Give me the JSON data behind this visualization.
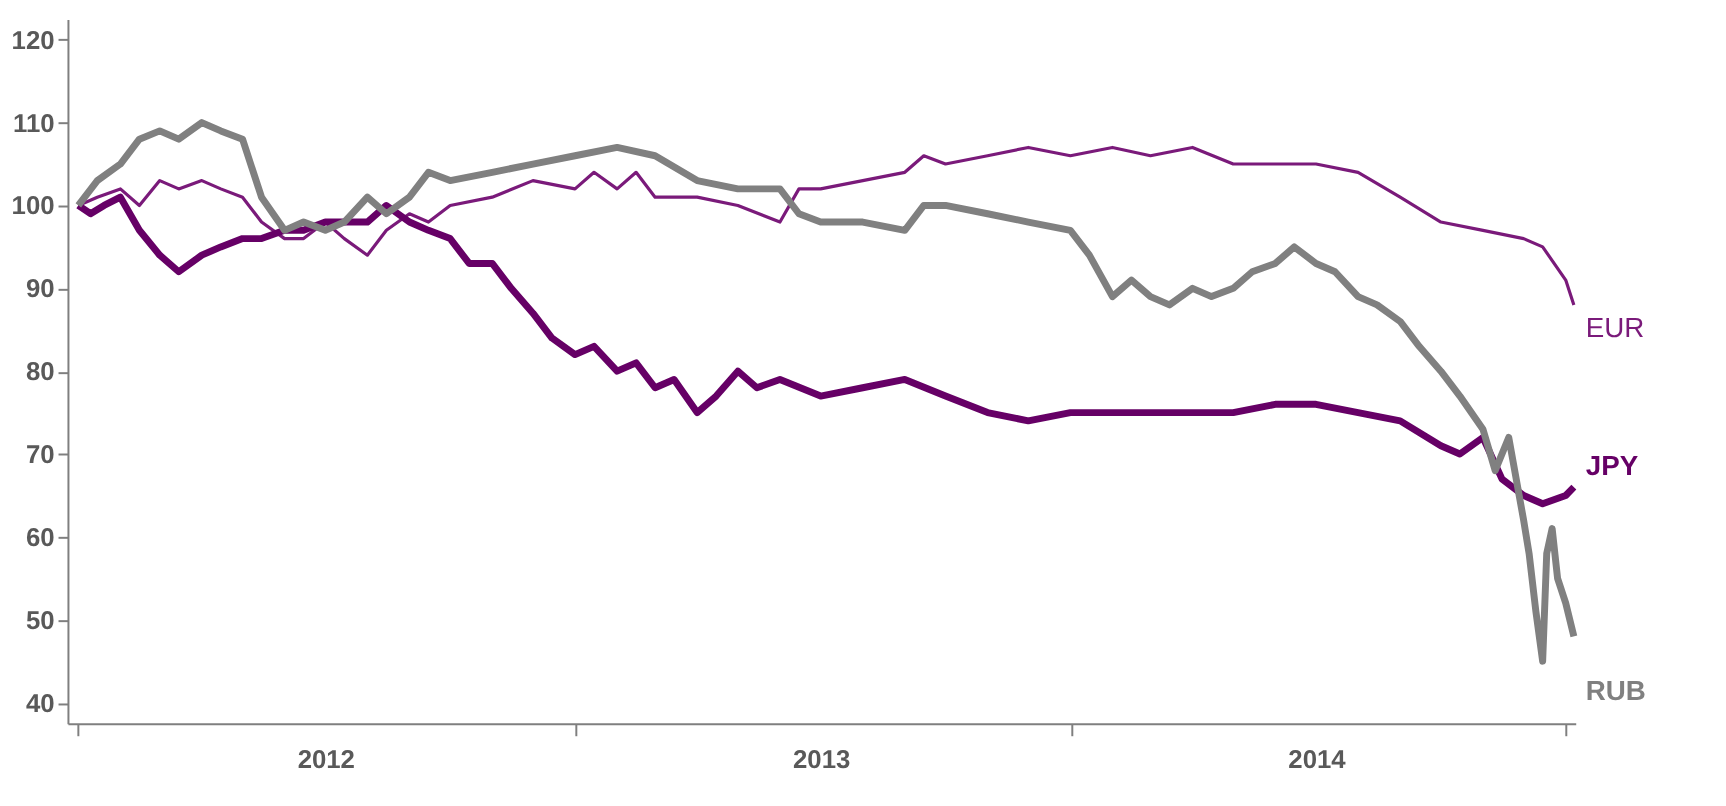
{
  "chart_data": {
    "type": "line",
    "xlim": [
      "2011-12-24",
      "2015-01-08"
    ],
    "ylim": [
      37.5,
      122.5
    ],
    "yticks": [
      40,
      50,
      60,
      70,
      80,
      90,
      100,
      110,
      120
    ],
    "xticks": [
      {
        "value": "2012-01-01",
        "label": null
      },
      {
        "value": "2012-07-01",
        "label": "2012"
      },
      {
        "value": "2013-01-01",
        "label": null
      },
      {
        "value": "2013-07-01",
        "label": "2013"
      },
      {
        "value": "2014-01-01",
        "label": null
      },
      {
        "value": "2014-07-01",
        "label": "2014"
      },
      {
        "value": "2015-01-01",
        "label": null
      }
    ],
    "series": [
      {
        "name": "EUR",
        "color": "#7a1a7a",
        "x": [
          "2012-01-01",
          "2012-01-15",
          "2012-02-01",
          "2012-02-15",
          "2012-03-01",
          "2012-03-15",
          "2012-04-01",
          "2012-04-15",
          "2012-05-01",
          "2012-05-15",
          "2012-06-01",
          "2012-06-15",
          "2012-07-01",
          "2012-07-15",
          "2012-08-01",
          "2012-08-15",
          "2012-09-01",
          "2012-09-15",
          "2012-10-01",
          "2012-11-01",
          "2012-12-01",
          "2013-01-01",
          "2013-01-15",
          "2013-02-01",
          "2013-02-15",
          "2013-03-01",
          "2013-04-01",
          "2013-05-01",
          "2013-06-01",
          "2013-06-15",
          "2013-07-01",
          "2013-08-01",
          "2013-09-01",
          "2013-09-15",
          "2013-10-01",
          "2013-11-01",
          "2013-12-01",
          "2014-01-01",
          "2014-02-01",
          "2014-03-01",
          "2014-04-01",
          "2014-05-01",
          "2014-06-01",
          "2014-07-01",
          "2014-08-01",
          "2014-09-01",
          "2014-10-01",
          "2014-11-01",
          "2014-12-01",
          "2014-12-15",
          "2015-01-01",
          "2015-01-07"
        ],
        "values": [
          100,
          101,
          102,
          100,
          103,
          102,
          103,
          102,
          101,
          98,
          96,
          96,
          98,
          96,
          94,
          97,
          99,
          98,
          100,
          101,
          103,
          102,
          104,
          102,
          104,
          101,
          101,
          100,
          98,
          102,
          102,
          103,
          104,
          106,
          105,
          106,
          107,
          106,
          107,
          106,
          107,
          105,
          105,
          105,
          104,
          101,
          98,
          97,
          96,
          95,
          91,
          88
        ]
      },
      {
        "name": "JPY",
        "color": "#660066",
        "x": [
          "2012-01-01",
          "2012-01-10",
          "2012-01-20",
          "2012-02-01",
          "2012-02-15",
          "2012-03-01",
          "2012-03-15",
          "2012-04-01",
          "2012-04-15",
          "2012-05-01",
          "2012-05-15",
          "2012-06-01",
          "2012-06-15",
          "2012-07-01",
          "2012-07-15",
          "2012-08-01",
          "2012-08-15",
          "2012-09-01",
          "2012-09-15",
          "2012-10-01",
          "2012-10-15",
          "2012-11-01",
          "2012-11-15",
          "2012-12-01",
          "2012-12-15",
          "2013-01-01",
          "2013-01-15",
          "2013-02-01",
          "2013-02-15",
          "2013-03-01",
          "2013-03-15",
          "2013-04-01",
          "2013-04-15",
          "2013-05-01",
          "2013-05-15",
          "2013-06-01",
          "2013-07-01",
          "2013-08-01",
          "2013-09-01",
          "2013-10-01",
          "2013-11-01",
          "2013-12-01",
          "2014-01-01",
          "2014-02-01",
          "2014-03-01",
          "2014-04-01",
          "2014-05-01",
          "2014-06-01",
          "2014-07-01",
          "2014-08-01",
          "2014-09-01",
          "2014-10-01",
          "2014-10-15",
          "2014-11-01",
          "2014-11-15",
          "2014-12-01",
          "2014-12-15",
          "2015-01-01",
          "2015-01-07"
        ],
        "values": [
          100,
          99,
          100,
          101,
          97,
          94,
          92,
          94,
          95,
          96,
          96,
          97,
          97,
          98,
          98,
          98,
          100,
          98,
          97,
          96,
          93,
          93,
          90,
          87,
          84,
          82,
          83,
          80,
          81,
          78,
          79,
          75,
          77,
          80,
          78,
          79,
          77,
          78,
          79,
          77,
          75,
          74,
          75,
          75,
          75,
          75,
          75,
          76,
          76,
          75,
          74,
          71,
          70,
          72,
          67,
          65,
          64,
          65,
          66
        ]
      },
      {
        "name": "RUB",
        "color": "#808080",
        "x": [
          "2012-01-01",
          "2012-01-15",
          "2012-02-01",
          "2012-02-15",
          "2012-03-01",
          "2012-03-15",
          "2012-04-01",
          "2012-04-15",
          "2012-05-01",
          "2012-05-15",
          "2012-06-01",
          "2012-06-15",
          "2012-07-01",
          "2012-07-15",
          "2012-08-01",
          "2012-08-15",
          "2012-09-01",
          "2012-09-15",
          "2012-10-01",
          "2012-11-01",
          "2012-12-01",
          "2013-01-01",
          "2013-02-01",
          "2013-03-01",
          "2013-04-01",
          "2013-05-01",
          "2013-06-01",
          "2013-06-15",
          "2013-07-01",
          "2013-08-01",
          "2013-09-01",
          "2013-09-15",
          "2013-10-01",
          "2013-11-01",
          "2013-12-01",
          "2014-01-01",
          "2014-01-15",
          "2014-02-01",
          "2014-02-15",
          "2014-03-01",
          "2014-03-15",
          "2014-04-01",
          "2014-04-15",
          "2014-05-01",
          "2014-05-15",
          "2014-06-01",
          "2014-06-15",
          "2014-07-01",
          "2014-07-15",
          "2014-08-01",
          "2014-08-15",
          "2014-09-01",
          "2014-09-15",
          "2014-10-01",
          "2014-10-15",
          "2014-11-01",
          "2014-11-10",
          "2014-11-20",
          "2014-12-01",
          "2014-12-05",
          "2014-12-10",
          "2014-12-15",
          "2014-12-18",
          "2014-12-22",
          "2014-12-26",
          "2015-01-01",
          "2015-01-07"
        ],
        "values": [
          100,
          103,
          105,
          108,
          109,
          108,
          110,
          109,
          108,
          101,
          97,
          98,
          97,
          98,
          101,
          99,
          101,
          104,
          103,
          104,
          105,
          106,
          107,
          106,
          103,
          102,
          102,
          99,
          98,
          98,
          97,
          100,
          100,
          99,
          98,
          97,
          94,
          89,
          91,
          89,
          88,
          90,
          89,
          90,
          92,
          93,
          95,
          93,
          92,
          89,
          88,
          86,
          83,
          80,
          77,
          73,
          68,
          72,
          62,
          58,
          51,
          45,
          58,
          61,
          55,
          52,
          48
        ]
      }
    ]
  }
}
